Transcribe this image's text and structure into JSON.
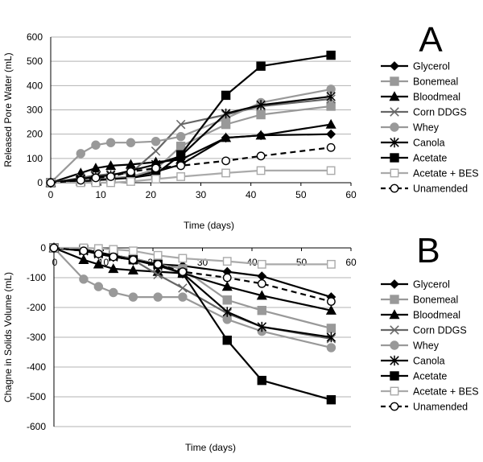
{
  "chart_data": [
    {
      "type": "line",
      "panel_label": "A",
      "xlabel": "Time (days)",
      "ylabel": "Released Pore Water (mL)",
      "xlim": [
        0,
        60
      ],
      "ylim": [
        0,
        600
      ],
      "xticks": [
        0,
        10,
        20,
        30,
        40,
        50,
        60
      ],
      "yticks": [
        0,
        100,
        200,
        300,
        400,
        500,
        600
      ],
      "x_tick_labels": [
        "0",
        "10",
        "20",
        "30",
        "40",
        "50",
        "60"
      ],
      "y_tick_labels": [
        "0",
        "100",
        "200",
        "300",
        "400",
        "500",
        "600"
      ],
      "grid": "horizontal",
      "legend_position": "right",
      "series": [
        {
          "name": "Glycerol",
          "color": "#000000",
          "dash": "solid",
          "marker": "diamond-filled",
          "x": [
            0,
            6,
            9,
            12,
            16,
            21,
            26,
            35,
            42,
            56
          ],
          "y": [
            0,
            5,
            10,
            15,
            25,
            45,
            75,
            185,
            195,
            200
          ]
        },
        {
          "name": "Bonemeal",
          "color": "#999999",
          "dash": "solid",
          "marker": "square-filled",
          "x": [
            0,
            6,
            9,
            12,
            16,
            21,
            26,
            35,
            42,
            56
          ],
          "y": [
            0,
            10,
            15,
            20,
            25,
            55,
            150,
            240,
            280,
            315
          ]
        },
        {
          "name": "Bloodmeal",
          "color": "#000000",
          "dash": "solid",
          "marker": "triangle-filled",
          "x": [
            0,
            6,
            9,
            12,
            16,
            21,
            26,
            35,
            42,
            56
          ],
          "y": [
            0,
            40,
            60,
            70,
            75,
            85,
            95,
            185,
            195,
            240
          ]
        },
        {
          "name": "Corn DDGS",
          "color": "#666666",
          "dash": "solid",
          "marker": "x",
          "x": [
            0,
            6,
            9,
            12,
            16,
            21,
            26,
            35,
            42,
            56
          ],
          "y": [
            0,
            20,
            30,
            35,
            40,
            130,
            240,
            280,
            315,
            345
          ]
        },
        {
          "name": "Whey",
          "color": "#999999",
          "dash": "solid",
          "marker": "circle-filled",
          "x": [
            0,
            6,
            9,
            12,
            16,
            21,
            26,
            35,
            42,
            56
          ],
          "y": [
            0,
            120,
            155,
            165,
            165,
            170,
            190,
            265,
            330,
            385
          ]
        },
        {
          "name": "Canola",
          "color": "#000000",
          "dash": "solid",
          "marker": "asterisk",
          "x": [
            0,
            6,
            9,
            12,
            16,
            21,
            26,
            35,
            42,
            56
          ],
          "y": [
            0,
            15,
            25,
            30,
            50,
            75,
            110,
            285,
            320,
            355
          ]
        },
        {
          "name": "Acetate",
          "color": "#000000",
          "dash": "solid",
          "marker": "square-filled",
          "x": [
            0,
            6,
            9,
            12,
            16,
            21,
            26,
            35,
            42,
            56
          ],
          "y": [
            0,
            5,
            10,
            15,
            20,
            35,
            115,
            360,
            480,
            525
          ]
        },
        {
          "name": "Acetate + BES",
          "color": "#aaaaaa",
          "dash": "solid",
          "marker": "square-open",
          "x": [
            0,
            6,
            9,
            12,
            16,
            21,
            26,
            35,
            42,
            56
          ],
          "y": [
            0,
            0,
            0,
            0,
            5,
            15,
            25,
            40,
            50,
            50
          ]
        },
        {
          "name": "Unamended",
          "color": "#000000",
          "dash": "dashed",
          "marker": "circle-open",
          "x": [
            0,
            6,
            9,
            12,
            16,
            21,
            26,
            35,
            42,
            56
          ],
          "y": [
            0,
            10,
            20,
            25,
            45,
            60,
            70,
            90,
            110,
            145
          ]
        }
      ]
    },
    {
      "type": "line",
      "panel_label": "B",
      "xlabel": "Time (days)",
      "ylabel": "Chagne in Solids Volume (mL)",
      "xlim": [
        0,
        60
      ],
      "ylim": [
        -600,
        0
      ],
      "xticks": [
        0,
        10,
        20,
        30,
        40,
        50,
        60
      ],
      "yticks": [
        0,
        -100,
        -200,
        -300,
        -400,
        -500,
        -600
      ],
      "x_tick_labels": [
        "0",
        "10",
        "20",
        "30",
        "40",
        "50",
        "60"
      ],
      "y_tick_labels": [
        "0",
        "-100",
        "-200",
        "-300",
        "-400",
        "-500",
        "-600"
      ],
      "grid": "horizontal",
      "legend_position": "right",
      "series": [
        {
          "name": "Glycerol",
          "color": "#000000",
          "dash": "solid",
          "marker": "diamond-filled",
          "x": [
            0,
            6,
            9,
            12,
            16,
            21,
            26,
            35,
            42,
            56
          ],
          "y": [
            0,
            -5,
            -15,
            -25,
            -35,
            -55,
            -60,
            -80,
            -95,
            -165
          ]
        },
        {
          "name": "Bonemeal",
          "color": "#999999",
          "dash": "solid",
          "marker": "square-filled",
          "x": [
            0,
            6,
            9,
            12,
            16,
            21,
            26,
            35,
            42,
            56
          ],
          "y": [
            0,
            -5,
            -15,
            -25,
            -35,
            -55,
            -70,
            -175,
            -210,
            -270
          ]
        },
        {
          "name": "Bloodmeal",
          "color": "#000000",
          "dash": "solid",
          "marker": "triangle-filled",
          "x": [
            0,
            6,
            9,
            12,
            16,
            21,
            26,
            35,
            42,
            56
          ],
          "y": [
            0,
            -40,
            -55,
            -70,
            -75,
            -80,
            -85,
            -130,
            -160,
            -210
          ]
        },
        {
          "name": "Corn DDGS",
          "color": "#666666",
          "dash": "solid",
          "marker": "x",
          "x": [
            0,
            6,
            9,
            12,
            16,
            21,
            26,
            35,
            42,
            56
          ],
          "y": [
            0,
            -10,
            -20,
            -30,
            -40,
            -90,
            -135,
            -220,
            -265,
            -305
          ]
        },
        {
          "name": "Whey",
          "color": "#999999",
          "dash": "solid",
          "marker": "circle-filled",
          "x": [
            0,
            6,
            9,
            12,
            16,
            21,
            26,
            35,
            42,
            56
          ],
          "y": [
            0,
            -105,
            -130,
            -150,
            -165,
            -165,
            -165,
            -240,
            -280,
            -335
          ]
        },
        {
          "name": "Canola",
          "color": "#000000",
          "dash": "solid",
          "marker": "asterisk",
          "x": [
            0,
            6,
            9,
            12,
            16,
            21,
            26,
            35,
            42,
            56
          ],
          "y": [
            0,
            -10,
            -20,
            -30,
            -40,
            -60,
            -85,
            -215,
            -265,
            -300
          ]
        },
        {
          "name": "Acetate",
          "color": "#000000",
          "dash": "solid",
          "marker": "square-filled",
          "x": [
            0,
            6,
            9,
            12,
            16,
            21,
            26,
            35,
            42,
            56
          ],
          "y": [
            0,
            -5,
            -15,
            -25,
            -40,
            -55,
            -85,
            -310,
            -445,
            -510
          ]
        },
        {
          "name": "Acetate + BES",
          "color": "#aaaaaa",
          "dash": "solid",
          "marker": "square-open",
          "x": [
            0,
            6,
            9,
            12,
            16,
            21,
            26,
            35,
            42,
            56
          ],
          "y": [
            0,
            0,
            -2,
            -5,
            -10,
            -25,
            -35,
            -45,
            -55,
            -55
          ]
        },
        {
          "name": "Unamended",
          "color": "#000000",
          "dash": "dashed",
          "marker": "circle-open",
          "x": [
            0,
            6,
            9,
            12,
            16,
            21,
            26,
            35,
            42,
            56
          ],
          "y": [
            0,
            -10,
            -20,
            -30,
            -40,
            -55,
            -80,
            -100,
            -120,
            -180
          ]
        }
      ]
    }
  ]
}
